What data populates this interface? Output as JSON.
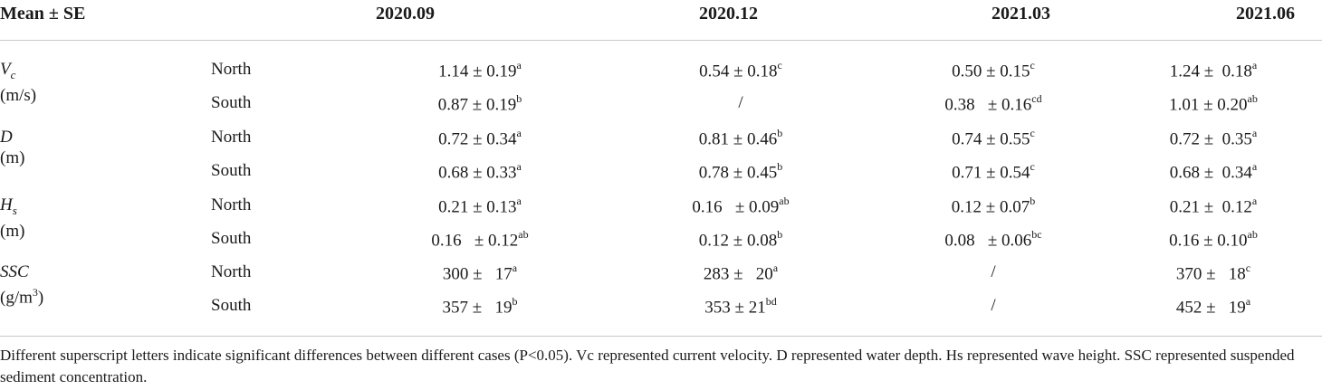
{
  "table": {
    "header": {
      "stat": "Mean ± SE",
      "periods": [
        "2020.09",
        "2020.12",
        "2021.03",
        "2021.06"
      ]
    },
    "variables": [
      {
        "symbol": "V",
        "subscript": "c",
        "unit": "(m/s)",
        "rows": [
          {
            "location": "North",
            "cells": [
              {
                "value": "1.14 ± 0.19",
                "sup": "a"
              },
              {
                "value": "0.54 ± 0.18",
                "sup": "c"
              },
              {
                "value": "0.50 ± 0.15",
                "sup": "c"
              },
              {
                "value": "1.24 ±  0.18",
                "sup": "a"
              }
            ]
          },
          {
            "location": "South",
            "cells": [
              {
                "value": "0.87 ± 0.19",
                "sup": "b"
              },
              {
                "value": "/",
                "sup": ""
              },
              {
                "value": "0.38   ± 0.16",
                "sup": "cd"
              },
              {
                "value": "1.01 ± 0.20",
                "sup": "ab"
              }
            ]
          }
        ]
      },
      {
        "symbol": "D",
        "subscript": "",
        "unit": "(m)",
        "rows": [
          {
            "location": "North",
            "cells": [
              {
                "value": "0.72 ± 0.34",
                "sup": "a"
              },
              {
                "value": "0.81 ± 0.46",
                "sup": "b"
              },
              {
                "value": "0.74 ± 0.55",
                "sup": "c"
              },
              {
                "value": "0.72 ±  0.35",
                "sup": "a"
              }
            ]
          },
          {
            "location": "South",
            "cells": [
              {
                "value": "0.68 ± 0.33",
                "sup": "a"
              },
              {
                "value": "0.78 ± 0.45",
                "sup": "b"
              },
              {
                "value": "0.71 ± 0.54",
                "sup": "c"
              },
              {
                "value": "0.68 ±  0.34",
                "sup": "a"
              }
            ]
          }
        ]
      },
      {
        "symbol": "H",
        "subscript": "s",
        "unit": "(m)",
        "rows": [
          {
            "location": "North",
            "cells": [
              {
                "value": "0.21 ± 0.13",
                "sup": "a"
              },
              {
                "value": "0.16   ± 0.09",
                "sup": "ab"
              },
              {
                "value": "0.12 ± 0.07",
                "sup": "b"
              },
              {
                "value": "0.21 ±  0.12",
                "sup": "a"
              }
            ]
          },
          {
            "location": "South",
            "cells": [
              {
                "value": "0.16   ± 0.12",
                "sup": "ab"
              },
              {
                "value": "0.12 ± 0.08",
                "sup": "b"
              },
              {
                "value": "0.08   ± 0.06",
                "sup": "bc"
              },
              {
                "value": "0.16 ± 0.10",
                "sup": "ab"
              }
            ]
          }
        ]
      },
      {
        "symbol": "SSC",
        "subscript": "",
        "unit": "(g/m",
        "unit_sup": "3",
        "unit_close": ")",
        "rows": [
          {
            "location": "North",
            "cells": [
              {
                "value": "300 ±   17",
                "sup": "a"
              },
              {
                "value": "283 ±   20",
                "sup": "a"
              },
              {
                "value": "/",
                "sup": ""
              },
              {
                "value": "370 ±   18",
                "sup": "c"
              }
            ]
          },
          {
            "location": "South",
            "cells": [
              {
                "value": "357 ±   19",
                "sup": "b"
              },
              {
                "value": "353 ± 21",
                "sup": "bd"
              },
              {
                "value": "/",
                "sup": ""
              },
              {
                "value": "452 ±   19",
                "sup": "a"
              }
            ]
          }
        ]
      }
    ],
    "footnote": "Different superscript letters indicate significant differences between different cases (P<0.05). Vc represented current velocity. D represented water depth. Hs represented wave height. SSC represented suspended sediment concentration."
  }
}
